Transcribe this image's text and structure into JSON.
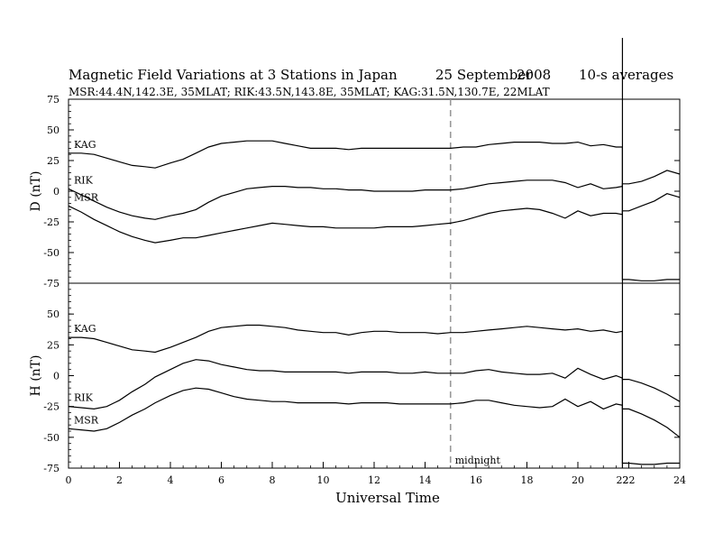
{
  "chart_data": {
    "type": "line",
    "title_parts": {
      "main": "Magnetic Field Variations at 3 Stations in Japan",
      "date": "25 September",
      "year": "2008",
      "averaging": "10-s averages"
    },
    "subtitle": "MSR:44.4N,142.3E, 35MLAT;   RIK:43.5N,143.8E, 35MLAT;   KAG:31.5N,130.7E, 22MLAT",
    "xlabel": "Universal Time",
    "xlim": [
      0,
      24
    ],
    "xticks": [
      "0",
      "2",
      "4",
      "6",
      "8",
      "10",
      "12",
      "14",
      "16",
      "18",
      "20",
      "22",
      "22",
      "24"
    ],
    "xtick_values": [
      0,
      2,
      4,
      6,
      8,
      10,
      12,
      14,
      16,
      18,
      20,
      21.75,
      22,
      24
    ],
    "midnight_marker": {
      "x": 15,
      "label": "midnight",
      "style": "dashed",
      "color": "#999999"
    },
    "data_gap_at": 21.75,
    "colors": {
      "lines": "#000000",
      "axes": "#000000",
      "midnight": "#999999"
    },
    "panels": [
      {
        "ylabel": "D (nT)",
        "ylim": [
          -75,
          75
        ],
        "yticks": [
          "75",
          "50",
          "25",
          "0",
          "-25",
          "-50",
          "-75"
        ],
        "ytick_values": [
          75,
          50,
          25,
          0,
          -25,
          -50,
          -75
        ],
        "series": [
          {
            "name": "KAG",
            "x": [
              0,
              0.5,
              1,
              1.5,
              2,
              2.5,
              3,
              3.4,
              4,
              4.5,
              5,
              5.5,
              6,
              6.5,
              7,
              7.5,
              8,
              8.5,
              9,
              9.5,
              10,
              10.5,
              11,
              11.5,
              12,
              12.5,
              13,
              13.5,
              14,
              14.5,
              15,
              15.5,
              16,
              16.5,
              17,
              17.5,
              18,
              18.5,
              19,
              19.5,
              20,
              20.5,
              21,
              21.5,
              21.75,
              22,
              22.5,
              23,
              23.5,
              24
            ],
            "y": [
              31,
              31,
              30,
              27,
              24,
              21,
              20,
              19,
              23,
              26,
              31,
              36,
              39,
              40,
              41,
              41,
              41,
              39,
              37,
              35,
              35,
              35,
              34,
              35,
              35,
              35,
              35,
              35,
              35,
              35,
              35,
              36,
              36,
              38,
              39,
              40,
              40,
              40,
              39,
              39,
              40,
              37,
              38,
              36,
              36,
              -72,
              -73,
              -73,
              -72,
              -72
            ]
          },
          {
            "name": "RIK",
            "x": [
              0,
              0.5,
              1,
              1.5,
              2,
              2.5,
              3,
              3.4,
              4,
              4.5,
              5,
              5.5,
              6,
              6.5,
              7,
              7.5,
              8,
              8.5,
              9,
              9.5,
              10,
              10.5,
              11,
              11.5,
              12,
              12.5,
              13,
              13.5,
              14,
              14.5,
              15,
              15.5,
              16,
              16.5,
              17,
              17.5,
              18,
              18.5,
              19,
              19.5,
              20,
              20.5,
              21,
              21.5,
              21.75,
              22,
              22.5,
              23,
              23.5,
              24
            ],
            "y": [
              2,
              -3,
              -8,
              -13,
              -17,
              -20,
              -22,
              -23,
              -20,
              -18,
              -15,
              -9,
              -4,
              -1,
              2,
              3,
              4,
              4,
              3,
              3,
              2,
              2,
              1,
              1,
              0,
              0,
              0,
              0,
              1,
              1,
              1,
              2,
              4,
              6,
              7,
              8,
              9,
              9,
              9,
              7,
              3,
              6,
              2,
              3,
              4,
              6,
              8,
              12,
              17,
              14
            ]
          },
          {
            "name": "MSR",
            "x": [
              0,
              0.5,
              1,
              1.5,
              2,
              2.5,
              3,
              3.4,
              4,
              4.5,
              5,
              5.5,
              6,
              6.5,
              7,
              7.5,
              8,
              8.5,
              9,
              9.5,
              10,
              10.5,
              11,
              11.5,
              12,
              12.5,
              13,
              13.5,
              14,
              14.5,
              15,
              15.5,
              16,
              16.5,
              17,
              17.5,
              18,
              18.5,
              19,
              19.5,
              20,
              20.5,
              21,
              21.5,
              21.75,
              22,
              22.5,
              23,
              23.5,
              24
            ],
            "y": [
              -12,
              -17,
              -23,
              -28,
              -33,
              -37,
              -40,
              -42,
              -40,
              -38,
              -38,
              -36,
              -34,
              -32,
              -30,
              -28,
              -26,
              -27,
              -28,
              -29,
              -29,
              -30,
              -30,
              -30,
              -30,
              -29,
              -29,
              -29,
              -28,
              -27,
              -26,
              -24,
              -21,
              -18,
              -16,
              -15,
              -14,
              -15,
              -18,
              -22,
              -16,
              -20,
              -18,
              -18,
              -19,
              -16,
              -12,
              -8,
              -2,
              -5
            ]
          }
        ]
      },
      {
        "ylabel": "H (nT)",
        "ylim": [
          -75,
          75
        ],
        "yticks": [
          "50",
          "25",
          "0",
          "-25",
          "-50",
          "-75"
        ],
        "ytick_values": [
          50,
          25,
          0,
          -25,
          -50,
          -75
        ],
        "series": [
          {
            "name": "KAG",
            "x": [
              0,
              0.5,
              1,
              1.5,
              2,
              2.5,
              3,
              3.4,
              4,
              4.5,
              5,
              5.5,
              6,
              6.5,
              7,
              7.5,
              8,
              8.5,
              9,
              9.5,
              10,
              10.5,
              11,
              11.5,
              12,
              12.5,
              13,
              13.5,
              14,
              14.5,
              15,
              15.5,
              16,
              16.5,
              17,
              17.5,
              18,
              18.5,
              19,
              19.5,
              20,
              20.5,
              21,
              21.5,
              21.75,
              22,
              22.5,
              23,
              23.5,
              24
            ],
            "y": [
              31,
              31,
              30,
              27,
              24,
              21,
              20,
              19,
              23,
              27,
              31,
              36,
              39,
              40,
              41,
              41,
              40,
              39,
              37,
              36,
              35,
              35,
              33,
              35,
              36,
              36,
              35,
              35,
              35,
              34,
              35,
              35,
              36,
              37,
              38,
              39,
              40,
              39,
              38,
              37,
              38,
              36,
              37,
              35,
              36,
              -71,
              -72,
              -72,
              -71,
              -71
            ]
          },
          {
            "name": "RIK",
            "x": [
              0,
              0.5,
              1,
              1.5,
              2,
              2.5,
              3,
              3.4,
              4,
              4.5,
              5,
              5.5,
              6,
              6.5,
              7,
              7.5,
              8,
              8.5,
              9,
              9.5,
              10,
              10.5,
              11,
              11.5,
              12,
              12.5,
              13,
              13.5,
              14,
              14.5,
              15,
              15.5,
              16,
              16.5,
              17,
              17.5,
              18,
              18.5,
              19,
              19.5,
              20,
              20.5,
              21,
              21.5,
              21.75,
              22,
              22.5,
              23,
              23.5,
              24
            ],
            "y": [
              -25,
              -26,
              -27,
              -25,
              -20,
              -13,
              -7,
              -1,
              5,
              10,
              13,
              12,
              9,
              7,
              5,
              4,
              4,
              3,
              3,
              3,
              3,
              3,
              2,
              3,
              3,
              3,
              2,
              2,
              3,
              2,
              2,
              2,
              4,
              5,
              3,
              2,
              1,
              1,
              2,
              -2,
              6,
              1,
              -3,
              0,
              -2,
              -3,
              -6,
              -10,
              -15,
              -21
            ]
          },
          {
            "name": "MSR",
            "x": [
              0,
              0.5,
              1,
              1.5,
              2,
              2.5,
              3,
              3.4,
              4,
              4.5,
              5,
              5.5,
              6,
              6.5,
              7,
              7.5,
              8,
              8.5,
              9,
              9.5,
              10,
              10.5,
              11,
              11.5,
              12,
              12.5,
              13,
              13.5,
              14,
              14.5,
              15,
              15.5,
              16,
              16.5,
              17,
              17.5,
              18,
              18.5,
              19,
              19.5,
              20,
              20.5,
              21,
              21.5,
              21.75,
              22,
              22.5,
              23,
              23.5,
              24
            ],
            "y": [
              -43,
              -44,
              -45,
              -43,
              -38,
              -32,
              -27,
              -22,
              -16,
              -12,
              -10,
              -11,
              -14,
              -17,
              -19,
              -20,
              -21,
              -21,
              -22,
              -22,
              -22,
              -22,
              -23,
              -22,
              -22,
              -22,
              -23,
              -23,
              -23,
              -23,
              -23,
              -22,
              -20,
              -20,
              -22,
              -24,
              -25,
              -26,
              -25,
              -19,
              -25,
              -21,
              -27,
              -23,
              -24,
              -27,
              -31,
              -36,
              -42,
              -50
            ]
          }
        ]
      }
    ]
  }
}
